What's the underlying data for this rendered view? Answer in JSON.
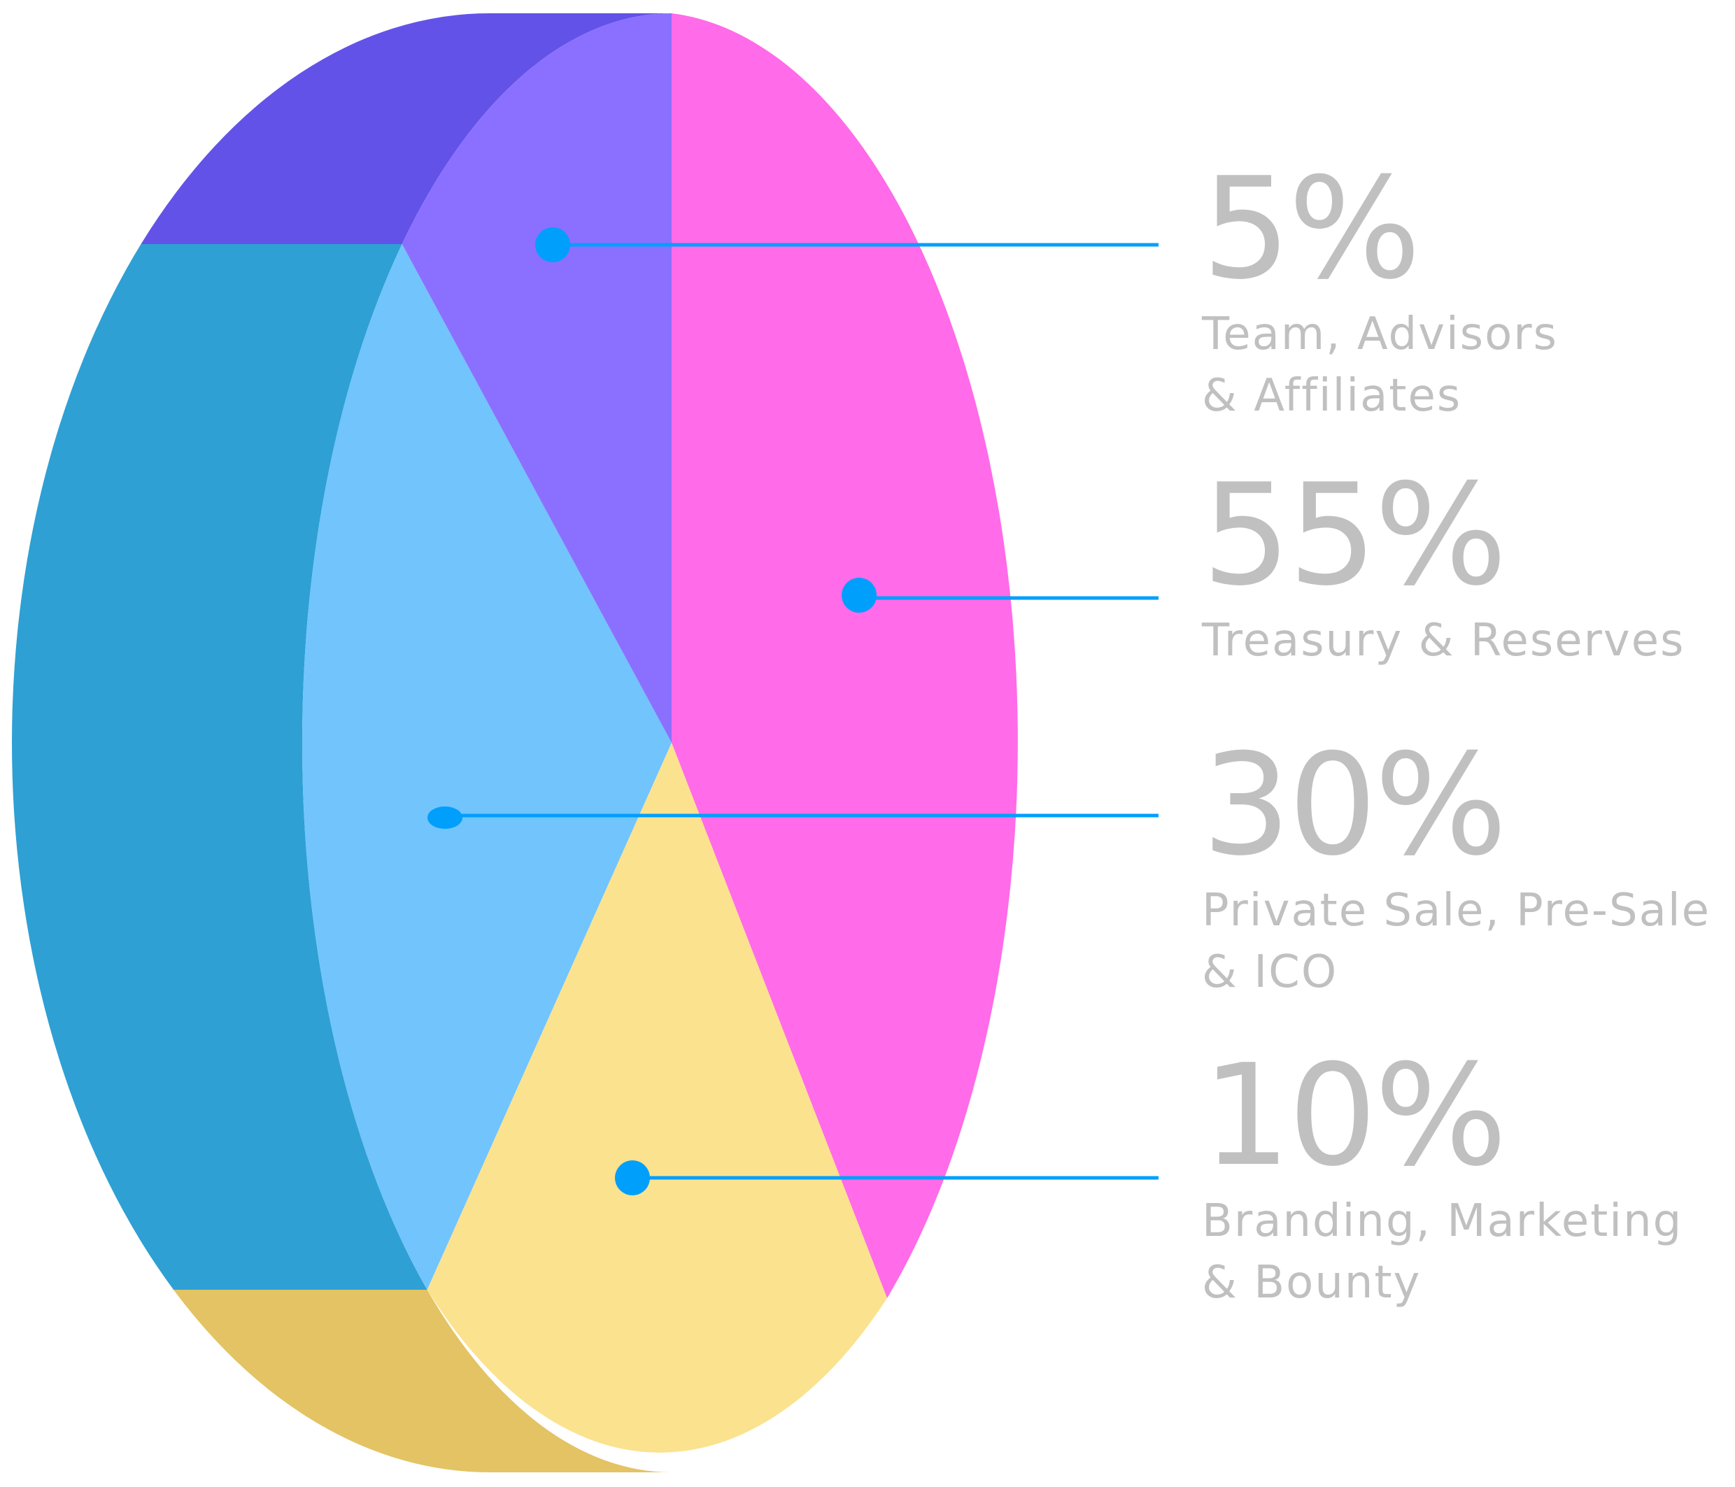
{
  "chart_data": {
    "type": "pie",
    "title": "",
    "slices": [
      {
        "value": 5,
        "percent_label": "5%",
        "label": "Team, Advisors\n& Affiliates",
        "color": "#8b70ff",
        "side_color": "#6352e8"
      },
      {
        "value": 55,
        "percent_label": "55%",
        "label": "Treasury & Reserves",
        "color": "#ff6be8",
        "side_color": "#ff6be8"
      },
      {
        "value": 30,
        "percent_label": "30%",
        "label": "Private Sale, Pre-Sale\n& ICO",
        "color": "#72c4fc",
        "side_color": "#2ea0d4"
      },
      {
        "value": 10,
        "percent_label": "10%",
        "label": "Branding, Marketing\n& Bounty",
        "color": "#fbe28f",
        "side_color": "#e3c363"
      }
    ],
    "legend_position": "right",
    "leader_color": "#009ffc",
    "style": "3d-tilted"
  }
}
